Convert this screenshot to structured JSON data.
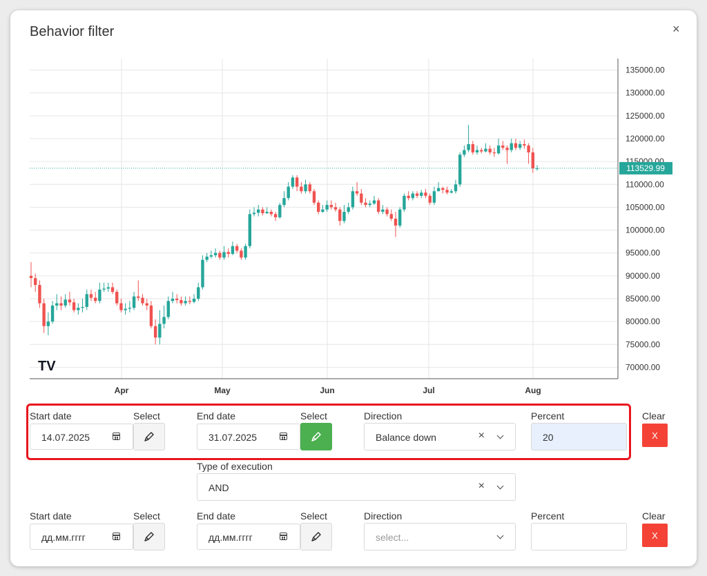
{
  "modal": {
    "title": "Behavior filter",
    "close_label": "×"
  },
  "chart_data": {
    "type": "candlestick",
    "x_ticks": [
      "Apr",
      "May",
      "Jun",
      "Jul",
      "Aug"
    ],
    "y_ticks": [
      "135000.00",
      "130000.00",
      "125000.00",
      "120000.00",
      "115000.00",
      "110000.00",
      "105000.00",
      "100000.00",
      "95000.00",
      "90000.00",
      "85000.00",
      "80000.00",
      "75000.00",
      "70000.00"
    ],
    "ylim": [
      67500,
      137500
    ],
    "last_price_label": "113529.99",
    "last_price": 113529.99,
    "colors": {
      "up": "#26a69a",
      "down": "#ef5350",
      "grid": "#e6e6e6",
      "price_line": "#26a69a"
    },
    "logo": "TV",
    "candles": [
      [
        90000,
        89500,
        93000,
        87500
      ],
      [
        89500,
        88000,
        90500,
        86500
      ],
      [
        88000,
        84000,
        89000,
        83000
      ],
      [
        84000,
        79000,
        85000,
        77500
      ],
      [
        79000,
        80000,
        82000,
        77000
      ],
      [
        80000,
        83500,
        84500,
        79500
      ],
      [
        83500,
        84000,
        86000,
        82500
      ],
      [
        84000,
        83500,
        85500,
        82500
      ],
      [
        83500,
        84800,
        86000,
        83000
      ],
      [
        84800,
        84200,
        86500,
        83500
      ],
      [
        84200,
        82500,
        85000,
        82000
      ],
      [
        82500,
        83000,
        84000,
        81500
      ],
      [
        83000,
        83200,
        85000,
        82000
      ],
      [
        83200,
        86000,
        87000,
        82500
      ],
      [
        86000,
        85200,
        87000,
        84500
      ],
      [
        85200,
        84500,
        86500,
        84000
      ],
      [
        84500,
        87000,
        88500,
        84000
      ],
      [
        87000,
        87200,
        88500,
        86500
      ],
      [
        87200,
        87500,
        88500,
        86500
      ],
      [
        87500,
        86500,
        88500,
        86000
      ],
      [
        86500,
        84000,
        87000,
        83500
      ],
      [
        84000,
        82500,
        85000,
        82000
      ],
      [
        82500,
        82800,
        84000,
        81500
      ],
      [
        82800,
        83000,
        84500,
        82000
      ],
      [
        83000,
        85500,
        86500,
        82500
      ],
      [
        85500,
        85200,
        89000,
        84500
      ],
      [
        85200,
        84000,
        86000,
        83500
      ],
      [
        84000,
        83500,
        85000,
        82500
      ],
      [
        83500,
        79000,
        84500,
        78500
      ],
      [
        79000,
        76500,
        80500,
        75000
      ],
      [
        76500,
        79500,
        82500,
        75000
      ],
      [
        79500,
        81000,
        83500,
        78500
      ],
      [
        81000,
        84500,
        85500,
        80500
      ],
      [
        84500,
        85000,
        86500,
        84000
      ],
      [
        85000,
        84700,
        86000,
        84000
      ],
      [
        84700,
        84000,
        85500,
        83500
      ],
      [
        84000,
        84500,
        85500,
        83500
      ],
      [
        84500,
        84300,
        85500,
        83800
      ],
      [
        84300,
        85000,
        86000,
        84000
      ],
      [
        85000,
        87500,
        88500,
        84500
      ],
      [
        87500,
        93500,
        94500,
        87000
      ],
      [
        93500,
        94200,
        95000,
        93000
      ],
      [
        94200,
        94500,
        95500,
        93800
      ],
      [
        94500,
        95000,
        96000,
        94000
      ],
      [
        95000,
        94000,
        95500,
        93500
      ],
      [
        94000,
        95200,
        96500,
        93500
      ],
      [
        95200,
        94800,
        96000,
        94000
      ],
      [
        94800,
        96500,
        97500,
        94500
      ],
      [
        96500,
        95500,
        97000,
        95000
      ],
      [
        95500,
        94000,
        96000,
        93500
      ],
      [
        94000,
        96500,
        97000,
        93500
      ],
      [
        96500,
        103500,
        104500,
        96000
      ],
      [
        103500,
        103800,
        105000,
        103000
      ],
      [
        103800,
        104500,
        105500,
        103000
      ],
      [
        104500,
        103700,
        105000,
        103200
      ],
      [
        103700,
        104000,
        105000,
        103500
      ],
      [
        104000,
        103500,
        104500,
        103000
      ],
      [
        103500,
        102800,
        104000,
        102000
      ],
      [
        102800,
        105500,
        106000,
        102500
      ],
      [
        105500,
        107000,
        108500,
        105000
      ],
      [
        107000,
        109500,
        110500,
        106500
      ],
      [
        109500,
        111500,
        112000,
        109000
      ],
      [
        111500,
        109500,
        112000,
        108500
      ],
      [
        109500,
        108500,
        110500,
        108000
      ],
      [
        108500,
        110000,
        111000,
        108000
      ],
      [
        110000,
        108500,
        110500,
        108000
      ],
      [
        108500,
        106000,
        109000,
        105500
      ],
      [
        106000,
        104000,
        106500,
        103500
      ],
      [
        104000,
        104500,
        105500,
        103800
      ],
      [
        104500,
        105500,
        106500,
        104000
      ],
      [
        105500,
        105000,
        106500,
        104500
      ],
      [
        105000,
        104500,
        106000,
        104000
      ],
      [
        104500,
        102000,
        105000,
        101000
      ],
      [
        102000,
        104000,
        105500,
        101500
      ],
      [
        104000,
        105000,
        106000,
        103500
      ],
      [
        105000,
        108500,
        109500,
        104500
      ],
      [
        108500,
        108000,
        110500,
        107500
      ],
      [
        108000,
        106000,
        109000,
        105500
      ],
      [
        106000,
        105500,
        107000,
        105000
      ],
      [
        105500,
        105800,
        106500,
        105000
      ],
      [
        105800,
        106500,
        107500,
        105500
      ],
      [
        106500,
        104000,
        107000,
        103500
      ],
      [
        104000,
        104500,
        105500,
        103500
      ],
      [
        104500,
        103500,
        105000,
        103000
      ],
      [
        103500,
        102500,
        104500,
        102000
      ],
      [
        102500,
        101000,
        104000,
        98500
      ],
      [
        101000,
        104500,
        105000,
        100500
      ],
      [
        104500,
        107500,
        108000,
        104000
      ],
      [
        107500,
        107000,
        108500,
        106500
      ],
      [
        107000,
        108000,
        108500,
        106500
      ],
      [
        108000,
        107500,
        108500,
        107000
      ],
      [
        107500,
        108200,
        108800,
        107000
      ],
      [
        108200,
        107500,
        109000,
        107000
      ],
      [
        107500,
        106000,
        108000,
        105500
      ],
      [
        106000,
        108500,
        109500,
        105500
      ],
      [
        108500,
        109200,
        110500,
        108500
      ],
      [
        109200,
        108800,
        109500,
        108000
      ],
      [
        108800,
        108200,
        109500,
        107800
      ],
      [
        108200,
        108500,
        109000,
        108000
      ],
      [
        108500,
        110000,
        111000,
        108000
      ],
      [
        110000,
        116500,
        117000,
        109500
      ],
      [
        116500,
        117500,
        118500,
        116000
      ],
      [
        117500,
        118800,
        123000,
        117000
      ],
      [
        118800,
        117000,
        119500,
        116500
      ],
      [
        117000,
        117500,
        118500,
        116500
      ],
      [
        117500,
        117200,
        118000,
        116800
      ],
      [
        117200,
        117800,
        119000,
        117000
      ],
      [
        117800,
        117000,
        118500,
        116500
      ],
      [
        117000,
        116800,
        118000,
        116000
      ],
      [
        116800,
        118500,
        120000,
        116500
      ],
      [
        118500,
        118000,
        119500,
        117500
      ],
      [
        118000,
        117500,
        118500,
        114500
      ],
      [
        117500,
        119000,
        120000,
        117000
      ],
      [
        119000,
        118000,
        120000,
        117500
      ],
      [
        118000,
        118800,
        119500,
        117500
      ],
      [
        118800,
        118500,
        119800,
        117800
      ],
      [
        118500,
        117000,
        119000,
        114500
      ],
      [
        117000,
        113500,
        118000,
        112500
      ],
      [
        113500,
        113530,
        114200,
        113000
      ]
    ]
  },
  "filter_rows": [
    {
      "start_label": "Start date",
      "start_value": "14.07.2025",
      "select1_label": "Select",
      "end_label": "End date",
      "end_value": "31.07.2025",
      "select2_label": "Select",
      "direction_label": "Direction",
      "direction_value": "Balance down",
      "percent_label": "Percent",
      "percent_value": "20",
      "clear_label": "Clear",
      "clear_btn": "X"
    },
    {
      "start_label": "Start date",
      "start_value": "дд.мм.гггг",
      "select1_label": "Select",
      "end_label": "End date",
      "end_value": "дд.мм.гггг",
      "select2_label": "Select",
      "direction_label": "Direction",
      "direction_placeholder": "select...",
      "percent_label": "Percent",
      "percent_value": "",
      "clear_label": "Clear",
      "clear_btn": "X"
    }
  ],
  "execution": {
    "label": "Type of execution",
    "value": "AND"
  }
}
